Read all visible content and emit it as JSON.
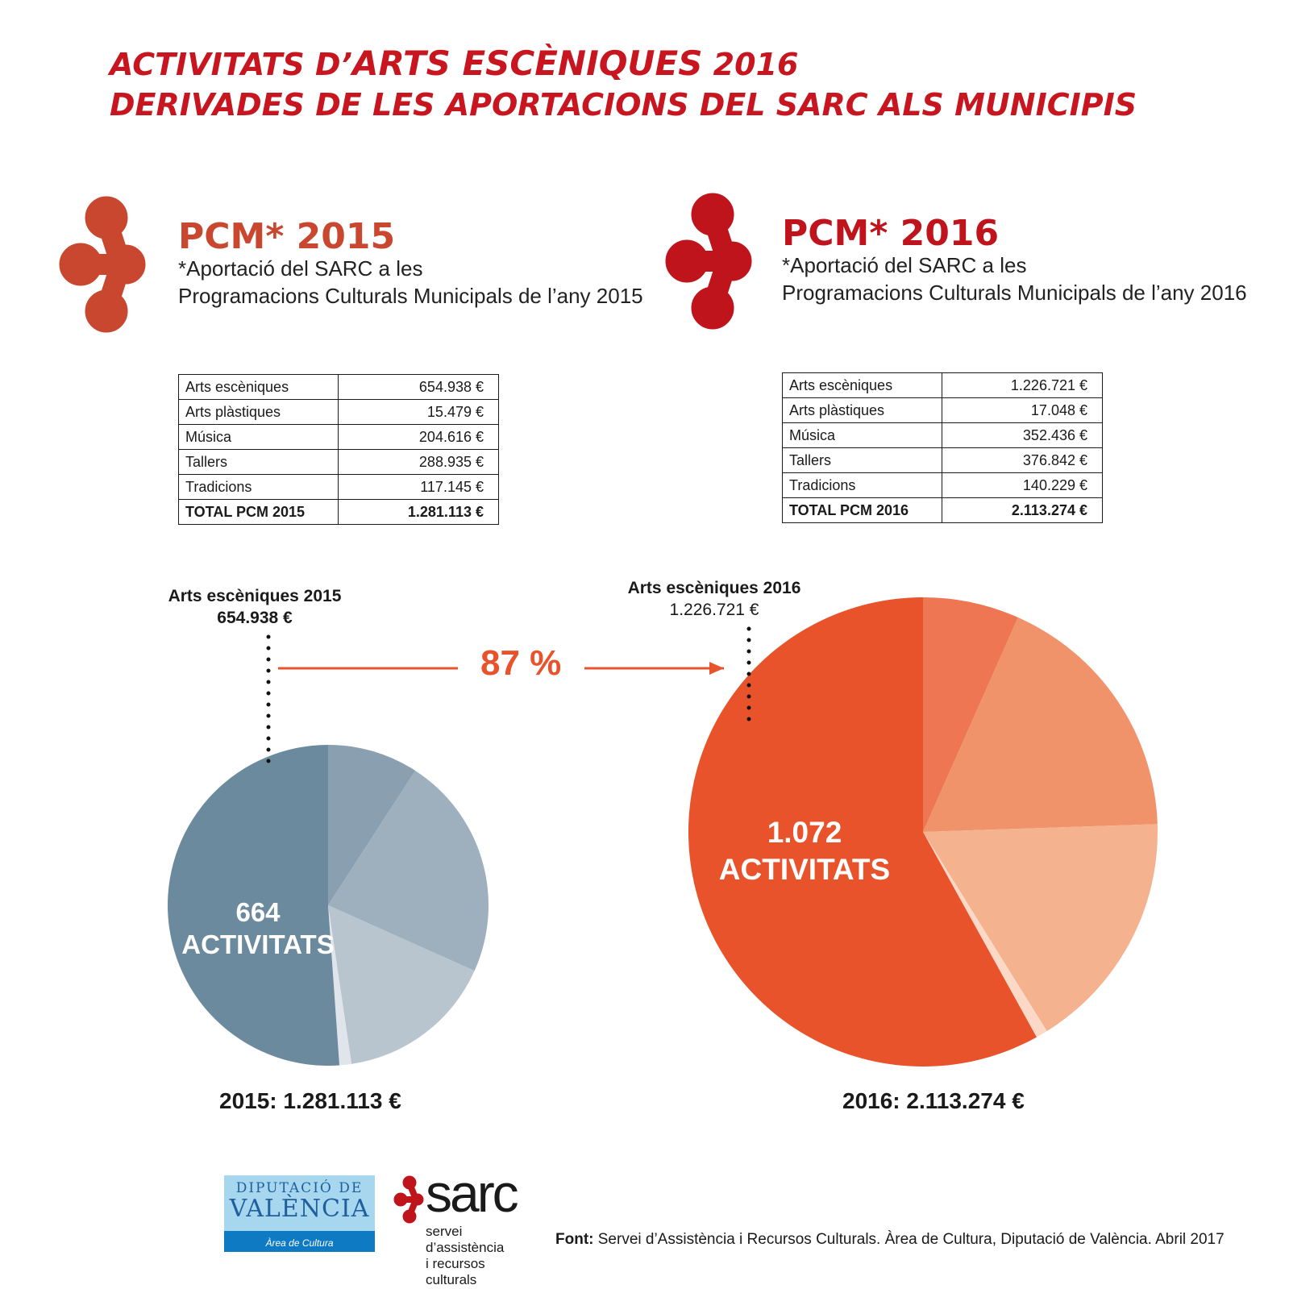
{
  "title": {
    "line1_prefix": "ACTIVITATS D’",
    "line1_strong": "ARTS ESCÈNIQUES",
    "line1_suffix": " 2016",
    "line2": "DERIVADES DE LES APORTACIONS DEL SARC ALS MUNICIPIS"
  },
  "colors": {
    "title": "#c7161f",
    "logo_2015": "#c9472f",
    "logo_2016": "#c0141c",
    "accent": "#e8532b",
    "pie2015": [
      "#6b8a9e",
      "#8aa0b0",
      "#9eb0bd",
      "#b8c5ce",
      "#dfe5ea"
    ],
    "pie2016": [
      "#e8532b",
      "#ee7653",
      "#f0926a",
      "#f5b28f",
      "#fbd9c6"
    ]
  },
  "pcm2015": {
    "heading": "PCM* 2015",
    "sub1": "*Aportació del SARC a les",
    "sub2": "Programacions Culturals Municipals de l’any 2015",
    "rows": [
      {
        "label": "Arts escèniques",
        "value": "654.938 €"
      },
      {
        "label": "Arts plàstiques",
        "value": "15.479 €"
      },
      {
        "label": "Música",
        "value": "204.616 €"
      },
      {
        "label": "Tallers",
        "value": "288.935 €"
      },
      {
        "label": "Tradicions",
        "value": "117.145 €"
      },
      {
        "label": "TOTAL PCM 2015",
        "value": "1.281.113 €"
      }
    ]
  },
  "pcm2016": {
    "heading": "PCM* 2016",
    "sub1": "*Aportació del SARC a les",
    "sub2": "Programacions Culturals Municipals de l’any 2016",
    "rows": [
      {
        "label": "Arts escèniques",
        "value": "1.226.721 €"
      },
      {
        "label": "Arts plàstiques",
        "value": "17.048 €"
      },
      {
        "label": "Música",
        "value": "352.436 €"
      },
      {
        "label": "Tallers",
        "value": "376.842 €"
      },
      {
        "label": "Tradicions",
        "value": "140.229 €"
      },
      {
        "label": "TOTAL PCM 2016",
        "value": "2.113.274 €"
      }
    ]
  },
  "callouts": {
    "c2015_label": "Arts escèniques 2015",
    "c2015_value": "654.938 €",
    "c2016_label": "Arts escèniques 2016",
    "c2016_value": "1.226.721 €",
    "growth": "87 %"
  },
  "pies": {
    "p2015_count": "664",
    "p2015_unit": "ACTIVITATS",
    "p2016_count": "1.072",
    "p2016_unit": "ACTIVITATS",
    "total2015": "2015: 1.281.113 €",
    "total2016": "2016: 2.113.274 €"
  },
  "chart_data": [
    {
      "type": "pie",
      "title": "2015: 1.281.113 €",
      "categories": [
        "Arts escèniques",
        "Tradicions",
        "Tallers",
        "Música",
        "Arts plàstiques"
      ],
      "values": [
        654938,
        117145,
        288935,
        204616,
        15479
      ]
    },
    {
      "type": "pie",
      "title": "2016: 2.113.274 €",
      "categories": [
        "Arts escèniques",
        "Tradicions",
        "Tallers",
        "Música",
        "Arts plàstiques"
      ],
      "values": [
        1226721,
        140229,
        376842,
        352436,
        17048
      ]
    }
  ],
  "footer": {
    "dip_line1": "DIPUTACIÓ DE",
    "dip_line2": "VALÈNCIA",
    "dip_line3": "Àrea de Cultura",
    "sarc_word": "sarc",
    "sarc_sub1": "servei d’assistència",
    "sarc_sub2": "i recursos culturals",
    "source_key": "Font:",
    "source_text": " Servei d’Assistència i Recursos Culturals. Àrea de Cultura, Diputació de València. Abril 2017"
  }
}
